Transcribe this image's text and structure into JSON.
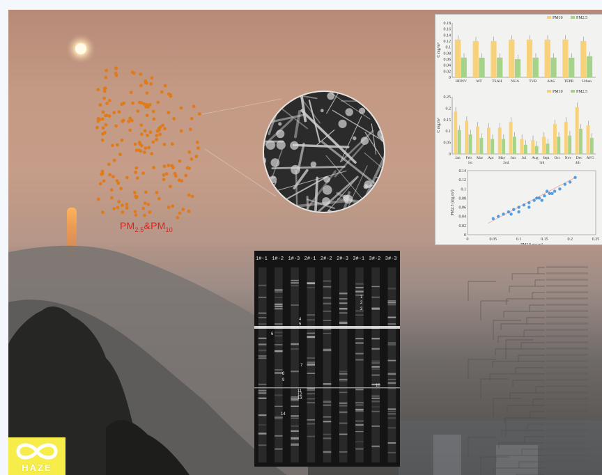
{
  "illustration": {
    "particle_label": {
      "pm25": "PM",
      "sub25": "2.5",
      "amp": "&",
      "pm10": "PM",
      "sub10": "10"
    },
    "logo_text": "HAZE"
  },
  "chart_data": [
    {
      "type": "bar",
      "categories": [
        "HDNV",
        "MT",
        "TSAH",
        "NUA",
        "TVR",
        "AAS",
        "TEPB",
        "Urban"
      ],
      "series": [
        {
          "name": "PM10",
          "values": [
            0.125,
            0.12,
            0.12,
            0.125,
            0.125,
            0.125,
            0.125,
            0.12
          ]
        },
        {
          "name": "PM2.5",
          "values": [
            0.065,
            0.065,
            0.065,
            0.06,
            0.065,
            0.065,
            0.065,
            0.07
          ]
        }
      ],
      "ylim": [
        0,
        0.18
      ],
      "yticks": [
        "0",
        "0.02",
        "0.04",
        "0.06",
        "0.08",
        "0.1",
        "0.12",
        "0.14",
        "0.16",
        "0.18"
      ],
      "ylabel": "C mg/m³",
      "legend": [
        "PM10",
        "PM2.5"
      ],
      "colors": {
        "pm10": "#f7d27a",
        "pm25": "#a6d38a"
      }
    },
    {
      "type": "bar",
      "categories": [
        "Jan",
        "Feb",
        "Mar",
        "Apr",
        "May",
        "Jun",
        "Jul",
        "Aug",
        "Sept",
        "Oct",
        "Nov",
        "Dec",
        "AVG"
      ],
      "groups": [
        "1st",
        "2nd",
        "3rd",
        "4th"
      ],
      "series": [
        {
          "name": "PM10",
          "values": [
            0.185,
            0.145,
            0.12,
            0.115,
            0.115,
            0.14,
            0.065,
            0.06,
            0.075,
            0.13,
            0.14,
            0.205,
            0.125
          ]
        },
        {
          "name": "PM2.5",
          "values": [
            0.105,
            0.085,
            0.07,
            0.065,
            0.065,
            0.075,
            0.04,
            0.035,
            0.045,
            0.075,
            0.08,
            0.11,
            0.07
          ]
        }
      ],
      "ylim": [
        0,
        0.25
      ],
      "yticks": [
        "0",
        "0.05",
        "0.1",
        "0.15",
        "0.2",
        "0.25"
      ],
      "ylabel": "C mg/m³",
      "legend": [
        "PM10",
        "PM2.5"
      ],
      "colors": {
        "pm10": "#f7d27a",
        "pm25": "#a6d38a"
      }
    },
    {
      "type": "scatter",
      "points": [
        [
          0.05,
          0.035
        ],
        [
          0.06,
          0.04
        ],
        [
          0.07,
          0.045
        ],
        [
          0.08,
          0.05
        ],
        [
          0.09,
          0.055
        ],
        [
          0.1,
          0.06
        ],
        [
          0.11,
          0.065
        ],
        [
          0.12,
          0.07
        ],
        [
          0.13,
          0.075
        ],
        [
          0.135,
          0.08
        ],
        [
          0.14,
          0.08
        ],
        [
          0.15,
          0.085
        ],
        [
          0.16,
          0.09
        ],
        [
          0.17,
          0.095
        ],
        [
          0.18,
          0.1
        ],
        [
          0.19,
          0.11
        ],
        [
          0.2,
          0.115
        ],
        [
          0.21,
          0.125
        ],
        [
          0.12,
          0.06
        ],
        [
          0.1,
          0.05
        ],
        [
          0.145,
          0.075
        ],
        [
          0.165,
          0.09
        ],
        [
          0.085,
          0.045
        ],
        [
          0.155,
          0.095
        ]
      ],
      "xlim": [
        0,
        0.25
      ],
      "ylim": [
        0,
        0.14
      ],
      "xticks": [
        "0",
        "0.05",
        "0.1",
        "0.15",
        "0.2",
        "0.25"
      ],
      "yticks": [
        "0",
        "0.02",
        "0.04",
        "0.06",
        "0.08",
        "0.1",
        "0.12",
        "0.14"
      ],
      "xlabel": "PM10  mg m³",
      "ylabel": "PM2.5  (mg m³)",
      "colors": {
        "points": "#3b8fdc",
        "fit": "#e8a4a4"
      }
    }
  ],
  "gel": {
    "lanes": [
      "1#-1",
      "1#-2",
      "1#-3",
      "2#-1",
      "2#-2",
      "2#-3",
      "3#-1",
      "3#-2",
      "3#-3"
    ],
    "band_labels": [
      {
        "t": "1",
        "x": 152,
        "y": 68
      },
      {
        "t": "2",
        "x": 152,
        "y": 76
      },
      {
        "t": "3",
        "x": 152,
        "y": 85
      },
      {
        "t": "4",
        "x": 64,
        "y": 100
      },
      {
        "t": "5",
        "x": 64,
        "y": 107
      },
      {
        "t": "6",
        "x": 24,
        "y": 121
      },
      {
        "t": "7",
        "x": 66,
        "y": 166
      },
      {
        "t": "8",
        "x": 40,
        "y": 178
      },
      {
        "t": "9",
        "x": 40,
        "y": 187
      },
      {
        "t": "10",
        "x": 174,
        "y": 195
      },
      {
        "t": "11",
        "x": 62,
        "y": 203
      },
      {
        "t": "12",
        "x": 62,
        "y": 208
      },
      {
        "t": "13",
        "x": 62,
        "y": 213
      },
      {
        "t": "14",
        "x": 38,
        "y": 236
      }
    ]
  }
}
